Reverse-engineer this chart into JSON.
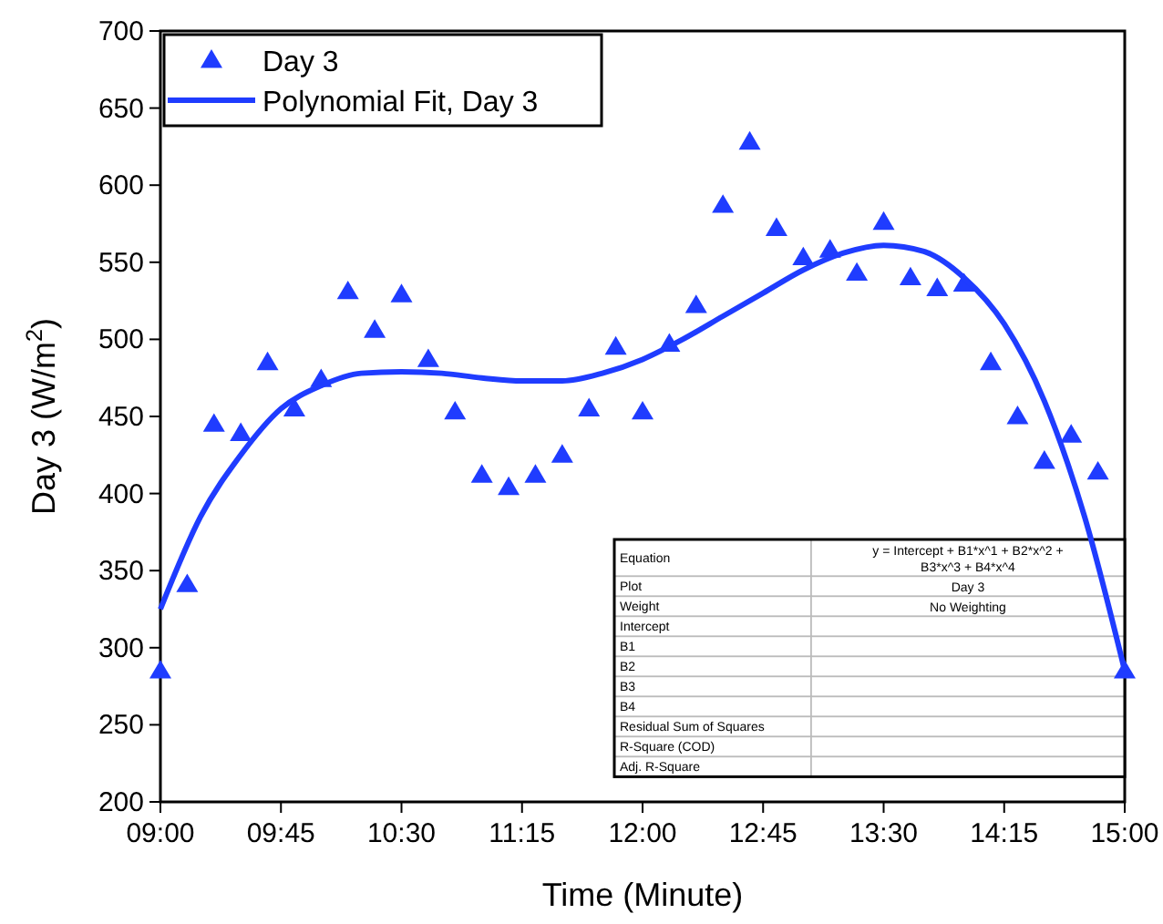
{
  "chart_data": {
    "type": "scatter",
    "xlabel": "Time (Minute)",
    "ylabel": "Day 3 (W/m$^{2}$)",
    "xlim": [
      9,
      15
    ],
    "ylim": [
      200,
      700
    ],
    "xticks": [
      {
        "value": 9,
        "label": "09:00"
      },
      {
        "value": 9.75,
        "label": "09:45"
      },
      {
        "value": 10.5,
        "label": "10:30"
      },
      {
        "value": 11.25,
        "label": "11:15"
      },
      {
        "value": 12,
        "label": "12:00"
      },
      {
        "value": 12.75,
        "label": "12:45"
      },
      {
        "value": 13.5,
        "label": "13:30"
      },
      {
        "value": 14.25,
        "label": "14:15"
      },
      {
        "value": 15,
        "label": "15:00"
      }
    ],
    "yticks": [
      200,
      250,
      300,
      350,
      400,
      450,
      500,
      550,
      600,
      650,
      700
    ],
    "grid": false,
    "legend": "top left",
    "marker": "triangle",
    "series": [
      {
        "name": "Day 3",
        "color": "#1f3cff",
        "x": [
          9,
          9.1667,
          9.3333,
          9.5,
          9.6667,
          9.8333,
          10,
          10.1667,
          10.3333,
          10.5,
          10.6667,
          10.8333,
          11,
          11.1667,
          11.3333,
          11.5,
          11.6667,
          11.8333,
          12,
          12.1667,
          12.3333,
          12.5,
          12.6667,
          12.8333,
          13,
          13.1667,
          13.3333,
          13.5,
          13.6667,
          13.8333,
          14,
          14.1667,
          14.3333,
          14.5,
          14.6667,
          14.8333,
          15
        ],
        "values": [
          285,
          341,
          445,
          439,
          485,
          455,
          474,
          531,
          506,
          529,
          487,
          453,
          412,
          404,
          412,
          425,
          455,
          495,
          453,
          497,
          522,
          587,
          628,
          572,
          553,
          558,
          543,
          576,
          540,
          533,
          536,
          485,
          450,
          421,
          438,
          414,
          285
        ]
      },
      {
        "name": "Polynomial Fit, Day 3",
        "type": "line",
        "color": "#1f3cff",
        "marker": "none",
        "line_style": "solid",
        "x": [
          9,
          9.25,
          9.5,
          9.75,
          10,
          10.25,
          10.5,
          10.75,
          11,
          11.25,
          11.5,
          11.75,
          12,
          12.25,
          12.5,
          12.75,
          13,
          13.25,
          13.5,
          13.75,
          14,
          14.25,
          14.5,
          14.75,
          15
        ],
        "values": [
          325,
          385,
          425,
          455,
          470,
          478,
          479,
          478,
          475,
          473,
          473,
          478,
          487,
          500,
          515,
          530,
          545,
          556,
          561,
          557,
          540,
          510,
          460,
          385,
          285
        ]
      }
    ],
    "annotations": [
      "Equation",
      "y = Intercept + B1*x^1 + B2*x^2 + B3*x^3 + B4*x^4",
      "Plot",
      "Day 3",
      "Weight",
      "No Weighting",
      "Intercept",
      "B1",
      "B2",
      "B3",
      "B4",
      "Residual Sum of Squares",
      "R-Square (COD)",
      "Adj. R-Square"
    ]
  }
}
